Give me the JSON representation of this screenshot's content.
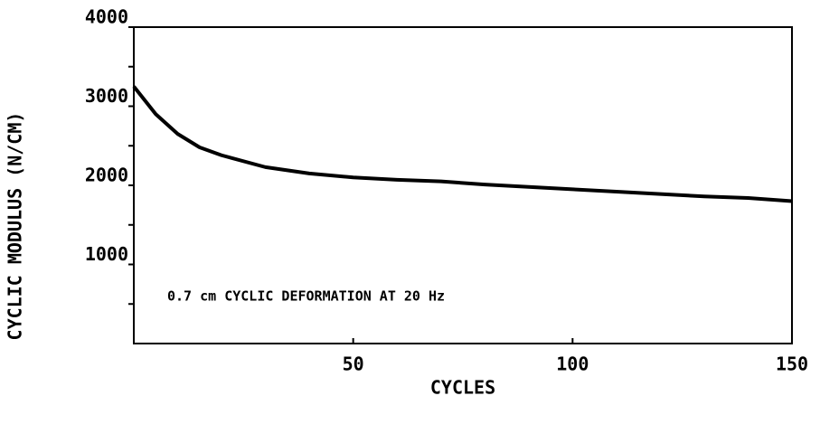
{
  "chart_data": {
    "type": "line",
    "xlabel": "CYCLES",
    "ylabel": "CYCLIC MODULUS (N/CM)",
    "annotation": "0.7 cm CYCLIC DEFORMATION AT 20 Hz",
    "x": [
      0,
      5,
      10,
      15,
      20,
      30,
      40,
      50,
      60,
      70,
      80,
      90,
      100,
      110,
      120,
      130,
      140,
      150
    ],
    "series": [
      {
        "name": "cyclic modulus",
        "color": "#000000",
        "values": [
          3250,
          2900,
          2650,
          2480,
          2380,
          2230,
          2150,
          2100,
          2070,
          2050,
          2010,
          1980,
          1950,
          1920,
          1890,
          1860,
          1840,
          1800
        ]
      }
    ],
    "xlim": [
      0,
      150
    ],
    "xticks": [
      50,
      100,
      150
    ],
    "ylim": [
      0,
      4000
    ],
    "yticks": [
      1000,
      2000,
      3000,
      4000
    ],
    "yminorticks": [
      500,
      1500,
      2500,
      3500
    ],
    "grid": false
  }
}
